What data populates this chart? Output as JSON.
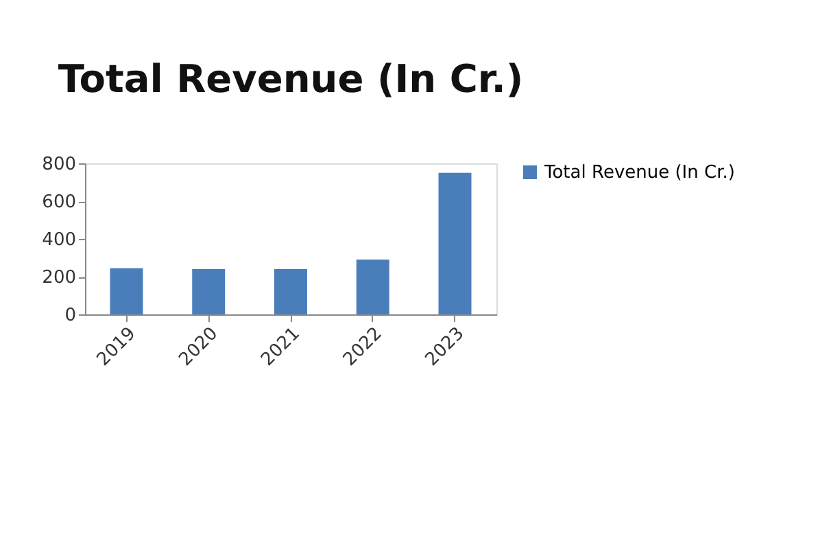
{
  "chart_data": {
    "type": "bar",
    "title": "Total Revenue (In Cr.)",
    "categories": [
      "2019",
      "2020",
      "2021",
      "2022",
      "2023"
    ],
    "series": [
      {
        "name": "Total Revenue (In Cr.)",
        "color": "#4a7ebb",
        "values": [
          245,
          240,
          240,
          290,
          750
        ]
      }
    ],
    "ylim": [
      0,
      800
    ],
    "yticks": [
      0,
      200,
      400,
      600,
      800
    ],
    "grid": false,
    "legend": "right"
  }
}
